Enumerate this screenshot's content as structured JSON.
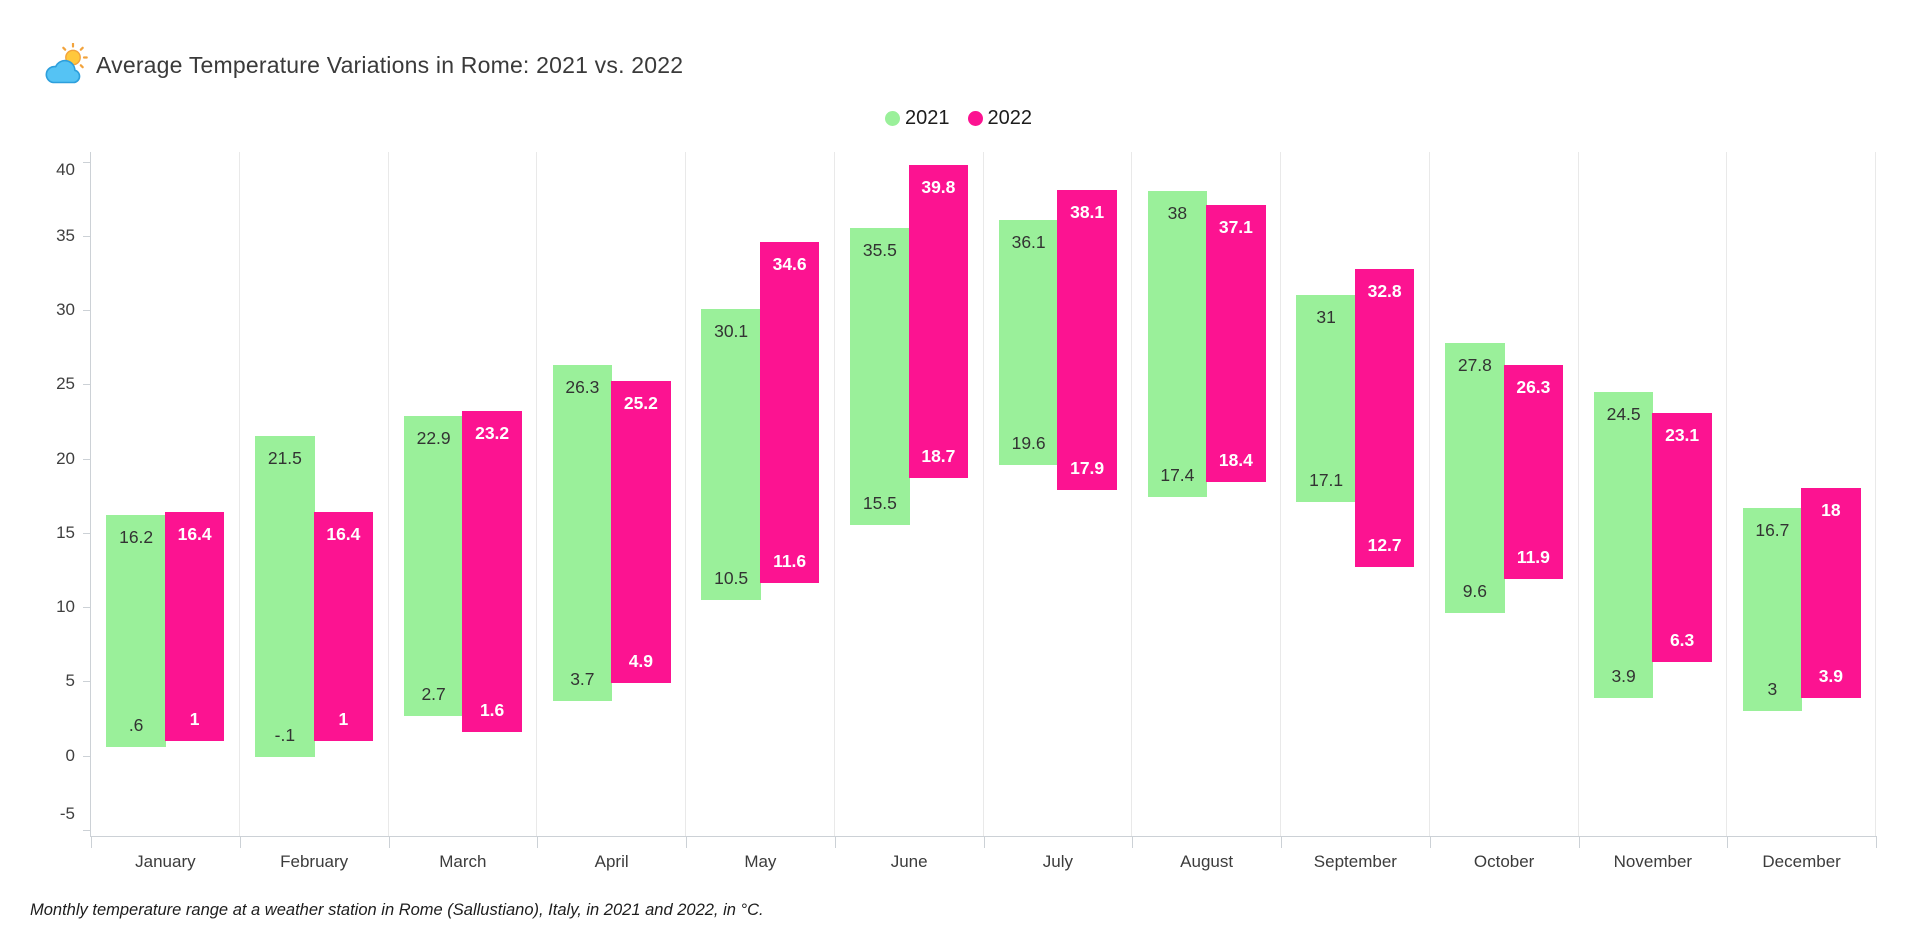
{
  "header": {
    "title": "Average Temperature Variations in Rome: 2021 vs. 2022",
    "icon": "sun-behind-cloud"
  },
  "legend": [
    {
      "label": "2021",
      "color": "#9AF09A"
    },
    {
      "label": "2022",
      "color": "#FC1391"
    }
  ],
  "footer": {
    "caption": "Monthly temperature range at a weather station in Rome (Sallustiano), Italy, in 2021 and 2022, in °C."
  },
  "chart_data": {
    "type": "bar",
    "subtype": "floating-range-column",
    "unit": "°C",
    "title": "Average Temperature Variations in Rome: 2021 vs. 2022",
    "categories": [
      "January",
      "February",
      "March",
      "April",
      "May",
      "June",
      "July",
      "August",
      "September",
      "October",
      "November",
      "December"
    ],
    "series": [
      {
        "name": "2021",
        "color": "#9AF09A",
        "label_color": "#333333",
        "label_weight": "400",
        "ranges": [
          {
            "min": ".6",
            "max": "16.2"
          },
          {
            "min": "-.1",
            "max": "21.5"
          },
          {
            "min": "2.7",
            "max": "22.9"
          },
          {
            "min": "3.7",
            "max": "26.3"
          },
          {
            "min": "10.5",
            "max": "30.1"
          },
          {
            "min": "15.5",
            "max": "35.5"
          },
          {
            "min": "19.6",
            "max": "36.1"
          },
          {
            "min": "17.4",
            "max": "38"
          },
          {
            "min": "17.1",
            "max": "31"
          },
          {
            "min": "9.6",
            "max": "27.8"
          },
          {
            "min": "3.9",
            "max": "24.5"
          },
          {
            "min": "3",
            "max": "16.7"
          }
        ]
      },
      {
        "name": "2022",
        "color": "#FC1391",
        "label_color": "#ffffff",
        "label_weight": "700",
        "ranges": [
          {
            "min": "1",
            "max": "16.4"
          },
          {
            "min": "1",
            "max": "16.4"
          },
          {
            "min": "1.6",
            "max": "23.2"
          },
          {
            "min": "4.9",
            "max": "25.2"
          },
          {
            "min": "11.6",
            "max": "34.6"
          },
          {
            "min": "18.7",
            "max": "39.8"
          },
          {
            "min": "17.9",
            "max": "38.1"
          },
          {
            "min": "18.4",
            "max": "37.1"
          },
          {
            "min": "12.7",
            "max": "32.8"
          },
          {
            "min": "11.9",
            "max": "26.3"
          },
          {
            "min": "6.3",
            "max": "23.1"
          },
          {
            "min": "3.9",
            "max": "18"
          }
        ]
      }
    ],
    "y_axis": {
      "ticks": [
        40,
        35,
        30,
        25,
        20,
        15,
        10,
        5,
        0,
        -5
      ],
      "min": -5.4,
      "max": 40.65,
      "edge_label_placement": "shift"
    },
    "grid": "vertical-category-dividers-only",
    "legend_position": "top-center"
  }
}
